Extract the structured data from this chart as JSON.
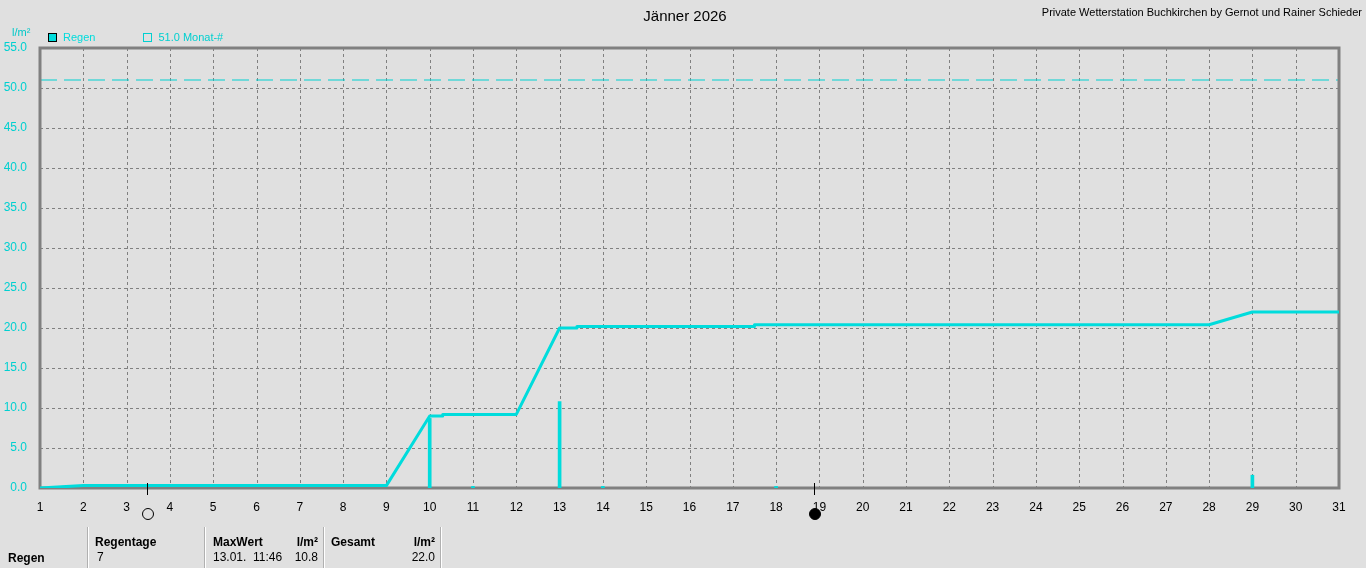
{
  "chart_data": {
    "type": "line",
    "title": "Jänner 2026",
    "ylabel": "l/m²",
    "annotations": [
      "Private Wetterstation Buchkirchen by Gernot und Rainer Schieder",
      "Regen",
      "Regentage",
      "7",
      "MaxWert",
      "l/m²",
      "13.01.  11:46",
      "10.8",
      "Gesamt",
      "l/m²",
      "22.0"
    ],
    "series": [
      {
        "type": "bar",
        "name": "Regen",
        "color": "#00dcdc",
        "x": [
          10,
          11,
          13,
          14,
          18,
          29
        ],
        "values": [
          8.7,
          0.2,
          10.8,
          0.2,
          0.2,
          1.6
        ]
      },
      {
        "color": "#00dcdc",
        "x": [
          1,
          2,
          9,
          10,
          10.3,
          10.3,
          12,
          13,
          13.4,
          13.4,
          17.5,
          17.5,
          28,
          29,
          31
        ],
        "values": [
          0,
          0.3,
          0.3,
          9.0,
          9.0,
          9.2,
          9.2,
          20.0,
          20.0,
          20.2,
          20.2,
          20.4,
          20.4,
          22.0,
          22.0
        ]
      }
    ],
    "xlim": [
      1,
      31
    ],
    "xticks": [
      1,
      2,
      3,
      4,
      5,
      6,
      7,
      8,
      9,
      10,
      11,
      12,
      13,
      14,
      15,
      16,
      17,
      18,
      19,
      20,
      21,
      22,
      23,
      24,
      25,
      26,
      27,
      28,
      29,
      30,
      31
    ],
    "ylim": [
      0,
      55
    ],
    "yticks": [
      {
        "value": 0,
        "label": "0.0"
      },
      {
        "value": 5,
        "label": "5.0"
      },
      {
        "value": 10,
        "label": "10.0"
      },
      {
        "value": 15,
        "label": "15.0"
      },
      {
        "value": 20,
        "label": "20.0"
      },
      {
        "value": 25,
        "label": "25.0"
      },
      {
        "value": 30,
        "label": "30.0"
      },
      {
        "value": 35,
        "label": "35.0"
      },
      {
        "value": 40,
        "label": "40.0"
      },
      {
        "value": 45,
        "label": "45.0"
      },
      {
        "value": 50,
        "label": "50.0"
      },
      {
        "value": 55,
        "label": "55.0"
      }
    ],
    "ref_lines": [
      {
        "axis": "y",
        "value": 51.0,
        "label": "51.0 Monat-#",
        "color": "#00d0d0",
        "line_style": "dashed"
      }
    ],
    "grid": true,
    "legend": "top left",
    "marker": "none",
    "line_style": "solid"
  }
}
